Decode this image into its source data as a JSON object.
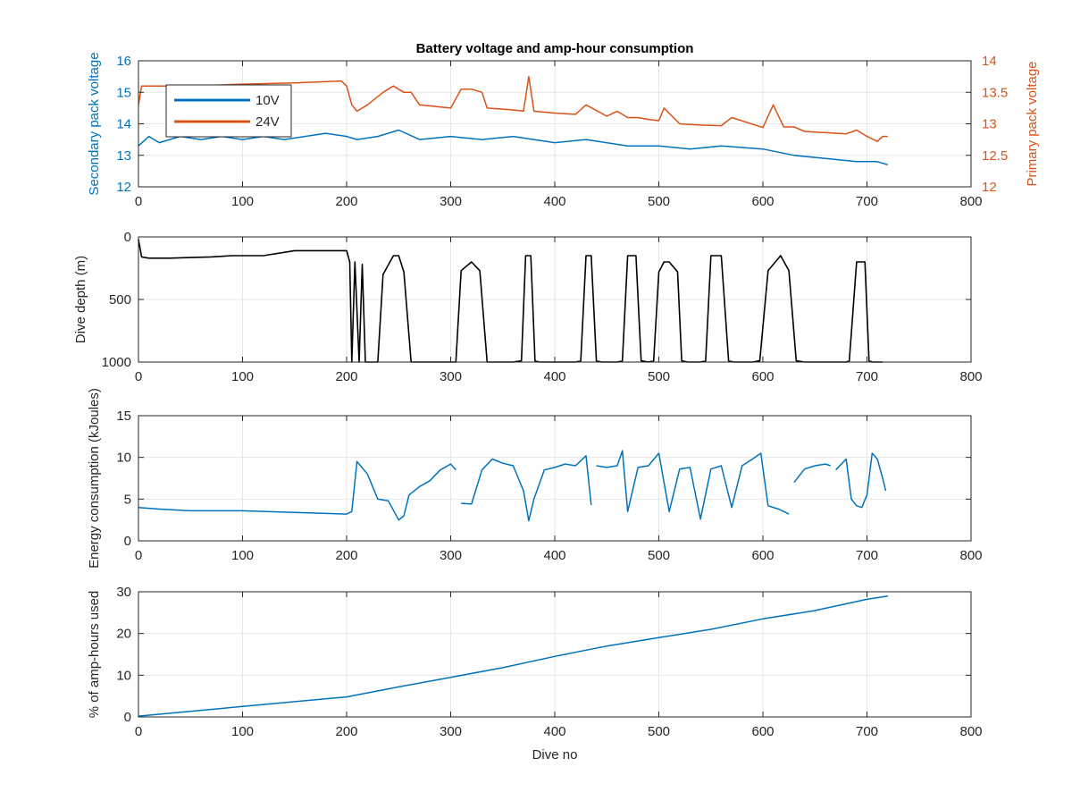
{
  "figure": {
    "title": "Battery voltage and amp-hour consumption"
  },
  "colors": {
    "blue": "#0072BD",
    "orange": "#D95319",
    "black": "#000000",
    "grid": "#e6e6e6",
    "axis": "#262626"
  },
  "chart_data": [
    {
      "type": "line",
      "title": "Battery voltage and amp-hour consumption",
      "xlabel": "",
      "ylabel": "Secondary pack voltage",
      "ylabel_right": "Primary pack voltage",
      "xlim": [
        0,
        800
      ],
      "ylim": [
        12,
        16
      ],
      "ylim_right": [
        12,
        14
      ],
      "xticks": [
        "0",
        "100",
        "200",
        "300",
        "400",
        "500",
        "600",
        "700",
        "800"
      ],
      "yticks": [
        "12",
        "13",
        "14",
        "15",
        "16"
      ],
      "yticks_right": [
        "12",
        "12.5",
        "13",
        "13.5",
        "14"
      ],
      "grid": true,
      "legend": {
        "placement": "top-left",
        "entries": [
          "10V",
          "24V"
        ]
      },
      "series": [
        {
          "name": "10V",
          "axis": "left",
          "x": [
            0,
            10,
            20,
            40,
            60,
            80,
            100,
            120,
            140,
            160,
            180,
            200,
            210,
            230,
            250,
            270,
            300,
            330,
            360,
            400,
            430,
            470,
            500,
            530,
            560,
            600,
            630,
            660,
            690,
            710,
            720
          ],
          "y": [
            13.3,
            13.6,
            13.4,
            13.6,
            13.5,
            13.6,
            13.5,
            13.6,
            13.5,
            13.6,
            13.7,
            13.6,
            13.5,
            13.6,
            13.8,
            13.5,
            13.6,
            13.5,
            13.6,
            13.4,
            13.5,
            13.3,
            13.3,
            13.2,
            13.3,
            13.2,
            13.0,
            12.9,
            12.8,
            12.8,
            12.7
          ]
        },
        {
          "name": "24V",
          "axis": "right",
          "x": [
            0,
            3,
            10,
            50,
            100,
            150,
            195,
            200,
            205,
            210,
            220,
            235,
            245,
            255,
            262,
            270,
            300,
            310,
            320,
            330,
            335,
            360,
            370,
            375,
            380,
            400,
            420,
            430,
            450,
            460,
            470,
            480,
            490,
            500,
            505,
            520,
            540,
            560,
            570,
            600,
            610,
            620,
            630,
            640,
            660,
            680,
            690,
            700,
            710,
            715,
            720
          ],
          "y": [
            13.3,
            13.6,
            13.6,
            13.6,
            13.63,
            13.65,
            13.68,
            13.6,
            13.3,
            13.2,
            13.3,
            13.5,
            13.6,
            13.5,
            13.5,
            13.3,
            13.25,
            13.55,
            13.55,
            13.5,
            13.25,
            13.22,
            13.2,
            13.75,
            13.2,
            13.17,
            13.15,
            13.3,
            13.12,
            13.2,
            13.1,
            13.1,
            13.07,
            13.05,
            13.25,
            13.0,
            12.98,
            12.97,
            13.1,
            12.94,
            13.3,
            12.95,
            12.95,
            12.88,
            12.86,
            12.84,
            12.9,
            12.8,
            12.72,
            12.8,
            12.8
          ]
        }
      ]
    },
    {
      "type": "line",
      "xlabel": "",
      "ylabel": "Dive depth (m)",
      "xlim": [
        0,
        800
      ],
      "ylim": [
        0,
        1000
      ],
      "y_reversed": true,
      "xticks": [
        "0",
        "100",
        "200",
        "300",
        "400",
        "500",
        "600",
        "700",
        "800"
      ],
      "yticks": [
        "0",
        "500",
        "1000"
      ],
      "grid": true,
      "series": [
        {
          "x": [
            0,
            3,
            10,
            30,
            50,
            70,
            90,
            120,
            150,
            170,
            190,
            200,
            203,
            205,
            208,
            212,
            215,
            218,
            223,
            230,
            235,
            245,
            250,
            255,
            262,
            270,
            300,
            305,
            310,
            320,
            328,
            335,
            360,
            368,
            372,
            377,
            381,
            385,
            400,
            420,
            425,
            430,
            435,
            440,
            445,
            460,
            465,
            470,
            478,
            483,
            490,
            495,
            500,
            505,
            510,
            518,
            522,
            528,
            540,
            545,
            550,
            560,
            567,
            572,
            590,
            597,
            605,
            617,
            625,
            632,
            640,
            680,
            683,
            690,
            698,
            702,
            705,
            715
          ],
          "y": [
            20,
            160,
            170,
            170,
            165,
            160,
            150,
            150,
            110,
            110,
            110,
            110,
            200,
            1000,
            200,
            1000,
            220,
            1000,
            1000,
            1000,
            300,
            150,
            150,
            280,
            1000,
            1000,
            1000,
            1000,
            270,
            200,
            270,
            1000,
            1000,
            990,
            150,
            150,
            990,
            1000,
            1000,
            1000,
            990,
            150,
            150,
            990,
            1000,
            1000,
            990,
            150,
            150,
            990,
            1000,
            990,
            280,
            200,
            200,
            280,
            990,
            1000,
            1000,
            990,
            150,
            150,
            990,
            1000,
            1000,
            990,
            270,
            150,
            270,
            990,
            1000,
            1000,
            990,
            200,
            200,
            990,
            1000,
            1000
          ]
        }
      ]
    },
    {
      "type": "line",
      "xlabel": "",
      "ylabel": "Energy consumption (kJoules)",
      "xlim": [
        0,
        800
      ],
      "ylim": [
        0,
        15
      ],
      "xticks": [
        "0",
        "100",
        "200",
        "300",
        "400",
        "500",
        "600",
        "700",
        "800"
      ],
      "yticks": [
        "0",
        "5",
        "10",
        "15"
      ],
      "grid": true,
      "series": [
        {
          "x": [
            0,
            20,
            50,
            100,
            150,
            200,
            205,
            210,
            220,
            230,
            240,
            250,
            255,
            260,
            270,
            280,
            290,
            300,
            305
          ],
          "y": [
            4.0,
            3.8,
            3.6,
            3.6,
            3.4,
            3.2,
            3.5,
            9.5,
            8.0,
            5.0,
            4.8,
            2.5,
            3.0,
            5.5,
            6.5,
            7.2,
            8.5,
            9.2,
            8.5
          ]
        },
        {
          "x": [
            310,
            320,
            330,
            340,
            350,
            360,
            370,
            375,
            380,
            390,
            400,
            410,
            420,
            430,
            435
          ],
          "y": [
            4.5,
            4.4,
            8.5,
            9.8,
            9.3,
            9.0,
            6.0,
            2.4,
            5.0,
            8.5,
            8.8,
            9.2,
            9.0,
            10.2,
            4.3
          ]
        },
        {
          "x": [
            440,
            450,
            460,
            465,
            470,
            480,
            490,
            500,
            510,
            520,
            530,
            540,
            550,
            560,
            570,
            580,
            590,
            598,
            605,
            615,
            625
          ],
          "y": [
            9.0,
            8.8,
            9.0,
            10.8,
            3.5,
            8.8,
            9.0,
            10.5,
            3.5,
            8.6,
            8.8,
            2.6,
            8.6,
            9.0,
            4.0,
            9.0,
            9.8,
            10.5,
            4.2,
            3.8,
            3.2
          ]
        },
        {
          "x": [
            630,
            640,
            650,
            660,
            665
          ],
          "y": [
            7.0,
            8.6,
            9.0,
            9.2,
            9.0
          ]
        },
        {
          "x": [
            670,
            680,
            685,
            690,
            695,
            700,
            705,
            710,
            715,
            718
          ],
          "y": [
            8.5,
            9.8,
            5.0,
            4.2,
            4.0,
            5.5,
            10.5,
            9.8,
            7.5,
            6.0
          ]
        }
      ]
    },
    {
      "type": "line",
      "xlabel": "Dive no",
      "ylabel": "% of amp-hours used",
      "xlim": [
        0,
        800
      ],
      "ylim": [
        0,
        30
      ],
      "xticks": [
        "0",
        "100",
        "200",
        "300",
        "400",
        "500",
        "600",
        "700",
        "800"
      ],
      "yticks": [
        "0",
        "10",
        "20",
        "30"
      ],
      "grid": true,
      "series": [
        {
          "x": [
            0,
            100,
            200,
            250,
            300,
            350,
            400,
            450,
            500,
            550,
            600,
            650,
            700,
            720
          ],
          "y": [
            0.2,
            2.5,
            4.8,
            7.2,
            9.5,
            11.8,
            14.5,
            17.0,
            19.0,
            21.0,
            23.5,
            25.5,
            28.2,
            29.0
          ]
        }
      ]
    }
  ]
}
